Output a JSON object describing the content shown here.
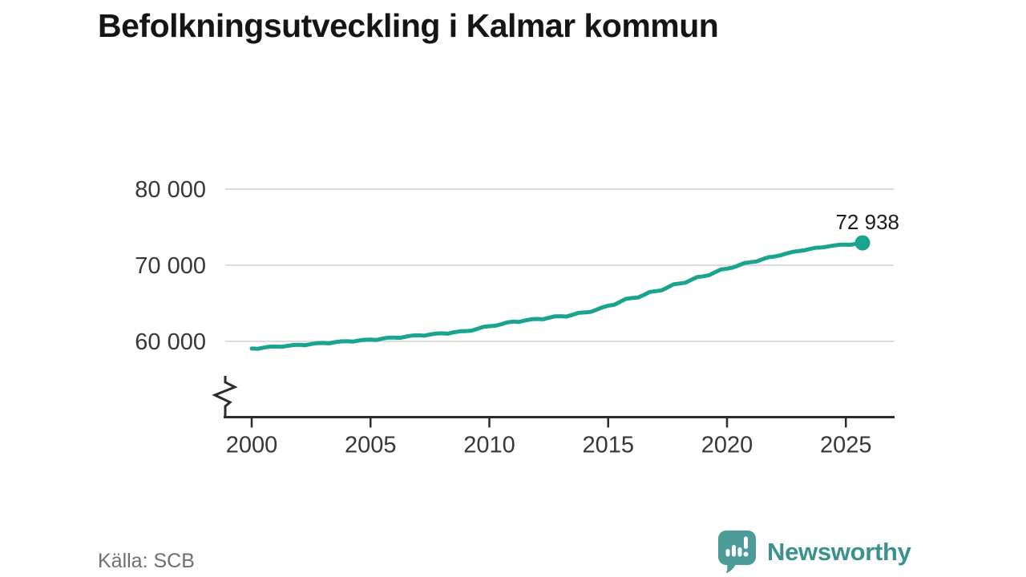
{
  "header": {
    "title": "Befolkningsutveckling i Kalmar kommun"
  },
  "footer": {
    "source": "Källa: SCB",
    "brand": "Newsworthy"
  },
  "colors": {
    "line": "#1aa38f",
    "logo_bubble": "#4e9c99",
    "brand_text": "#39928e",
    "grid": "#dcdcdc",
    "axis": "#2c2c2c",
    "tick_label": "#373737",
    "title_text": "#151515",
    "source_text": "#6f6f6f"
  },
  "chart_data": {
    "type": "line",
    "title": "Befolkningsutveckling i Kalmar kommun",
    "xlabel": "",
    "ylabel": "",
    "xlim": [
      2000,
      2027
    ],
    "ylim_visible": [
      58500,
      80000
    ],
    "grid": "horizontal",
    "axis_break": true,
    "legend_position": "none",
    "end_label": "72 938",
    "end_value": 72938,
    "source": "Källa: SCB",
    "xticks": [
      {
        "value": 2000,
        "label": "2000"
      },
      {
        "value": 2005,
        "label": "2005"
      },
      {
        "value": 2010,
        "label": "2010"
      },
      {
        "value": 2015,
        "label": "2015"
      },
      {
        "value": 2020,
        "label": "2020"
      },
      {
        "value": 2025,
        "label": "2025"
      }
    ],
    "yticks": [
      {
        "value": 60000,
        "label": "60 000"
      },
      {
        "value": 70000,
        "label": "70 000"
      },
      {
        "value": 80000,
        "label": "80 000"
      }
    ],
    "series": [
      {
        "name": "Befolkning i Kalmar kommun",
        "x": [
          2000.0,
          2000.25,
          2000.5,
          2000.75,
          2001.0,
          2001.25,
          2001.5,
          2001.75,
          2002.0,
          2002.25,
          2002.5,
          2002.75,
          2003.0,
          2003.25,
          2003.5,
          2003.75,
          2004.0,
          2004.25,
          2004.5,
          2004.75,
          2005.0,
          2005.25,
          2005.5,
          2005.75,
          2006.0,
          2006.25,
          2006.5,
          2006.75,
          2007.0,
          2007.25,
          2007.5,
          2007.75,
          2008.0,
          2008.25,
          2008.5,
          2008.75,
          2009.0,
          2009.25,
          2009.5,
          2009.75,
          2010.0,
          2010.25,
          2010.5,
          2010.75,
          2011.0,
          2011.25,
          2011.5,
          2011.75,
          2012.0,
          2012.25,
          2012.5,
          2012.75,
          2013.0,
          2013.25,
          2013.5,
          2013.75,
          2014.0,
          2014.25,
          2014.5,
          2014.75,
          2015.0,
          2015.25,
          2015.5,
          2015.75,
          2016.0,
          2016.25,
          2016.5,
          2016.75,
          2017.0,
          2017.25,
          2017.5,
          2017.75,
          2018.0,
          2018.25,
          2018.5,
          2018.75,
          2019.0,
          2019.25,
          2019.5,
          2019.75,
          2020.0,
          2020.25,
          2020.5,
          2020.75,
          2021.0,
          2021.25,
          2021.5,
          2021.75,
          2022.0,
          2022.25,
          2022.5,
          2022.75,
          2023.0,
          2023.25,
          2023.5,
          2023.75,
          2024.0,
          2024.25,
          2024.5,
          2024.75,
          2025.0,
          2025.2,
          2025.45,
          2025.7
        ],
        "y": [
          59060,
          59020,
          59180,
          59300,
          59330,
          59280,
          59410,
          59530,
          59550,
          59500,
          59650,
          59770,
          59790,
          59740,
          59890,
          60000,
          60020,
          59970,
          60110,
          60210,
          60240,
          60190,
          60360,
          60490,
          60510,
          60460,
          60630,
          60770,
          60800,
          60750,
          60910,
          61030,
          61060,
          61010,
          61190,
          61330,
          61360,
          61410,
          61650,
          61900,
          62000,
          62050,
          62250,
          62500,
          62600,
          62560,
          62750,
          62900,
          62950,
          62900,
          63100,
          63280,
          63300,
          63260,
          63500,
          63750,
          63800,
          63860,
          64150,
          64450,
          64700,
          64800,
          65200,
          65600,
          65700,
          65760,
          66100,
          66500,
          66600,
          66710,
          67100,
          67500,
          67600,
          67710,
          68100,
          68450,
          68550,
          68710,
          69100,
          69450,
          69550,
          69710,
          70000,
          70300,
          70400,
          70510,
          70800,
          71050,
          71150,
          71310,
          71550,
          71750,
          71850,
          71960,
          72150,
          72300,
          72350,
          72460,
          72600,
          72700,
          72720,
          72690,
          72820,
          72938
        ]
      }
    ]
  }
}
